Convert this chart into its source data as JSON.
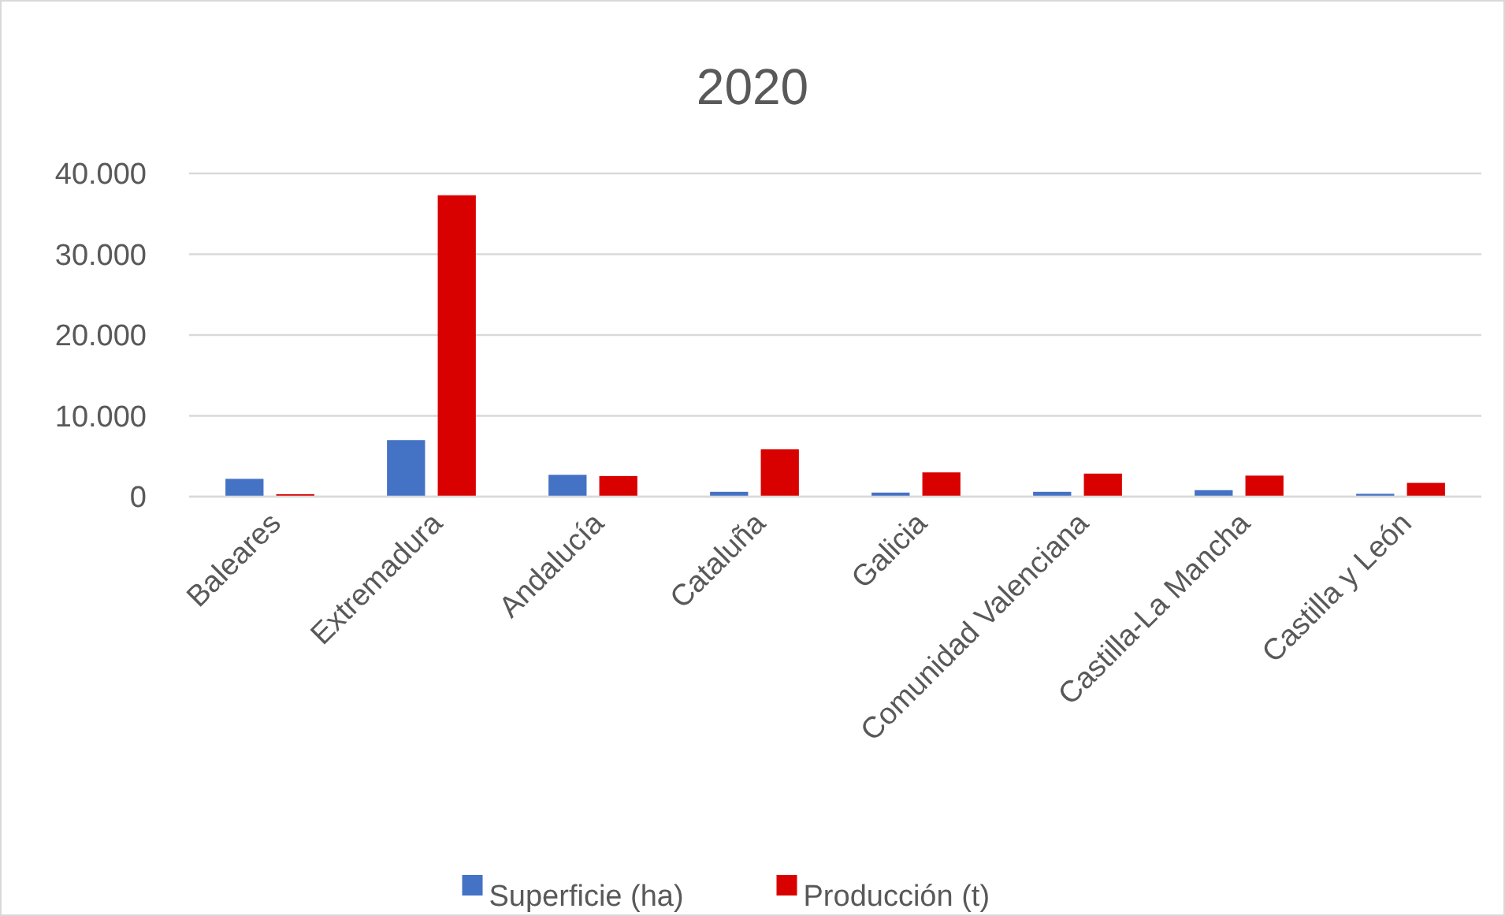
{
  "chart_data": {
    "type": "bar",
    "title": "2020",
    "categories": [
      "Baleares",
      "Extremadura",
      "Andalucía",
      "Cataluña",
      "Galicia",
      "Comunidad Valenciana",
      "Castilla-La Mancha",
      "Castilla y León"
    ],
    "series": [
      {
        "name": "Superficie (ha)",
        "color": "#4472c4",
        "values": [
          2200,
          7000,
          2700,
          600,
          500,
          600,
          800,
          350
        ]
      },
      {
        "name": "Producción (t)",
        "color": "#d90000",
        "values": [
          300,
          37300,
          2550,
          5850,
          3000,
          2850,
          2600,
          1700
        ]
      }
    ],
    "ylim": [
      0,
      40000
    ],
    "yticks": [
      0,
      {
        "value": 10000,
        "label": "10.000"
      },
      {
        "value": 20000,
        "label": "20.000"
      },
      {
        "value": 30000,
        "label": "30.000"
      },
      {
        "value": 40000,
        "label": "40.000"
      }
    ],
    "grid": "y",
    "legend": "bottom"
  }
}
